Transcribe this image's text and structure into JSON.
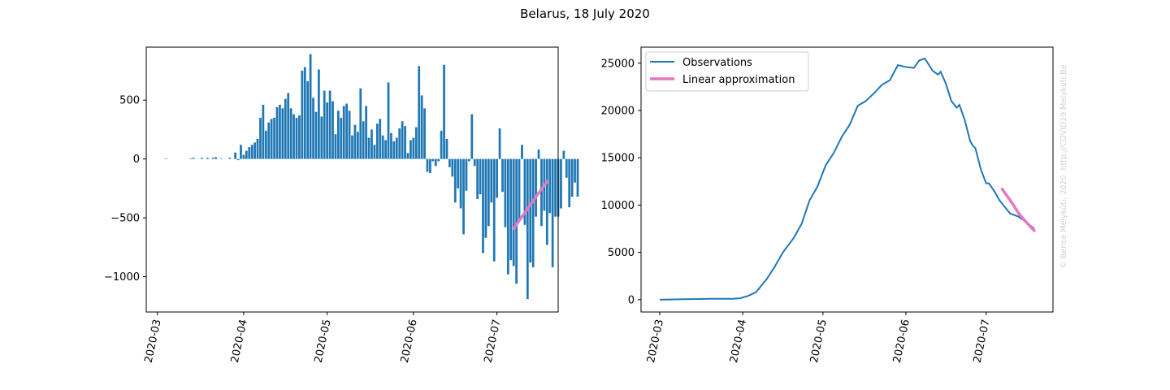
{
  "figure": {
    "title": "Belarus, 18 July 2020",
    "watermark": "© Bence Mélykúti, 2020. http://COVID19.Melykuti.Be"
  },
  "colors": {
    "observations": "#1f77b4",
    "linear_approximation": "#e377c2"
  },
  "chart_data": [
    {
      "id": "daily_change",
      "type": "bar",
      "title": "",
      "xlabel": "",
      "ylabel": "",
      "x_axis": "date",
      "xlim": [
        "2020-02-26",
        "2020-07-23"
      ],
      "ylim": [
        -1300,
        950
      ],
      "x_ticks": [
        "2020-03-01",
        "2020-04-01",
        "2020-05-01",
        "2020-06-01",
        "2020-07-01"
      ],
      "x_tick_labels": [
        "2020-03",
        "2020-04",
        "2020-05",
        "2020-06",
        "2020-07"
      ],
      "y_ticks": [
        -1000,
        -500,
        0,
        500
      ],
      "y_tick_labels": [
        "−1000",
        "−500",
        "0",
        "500"
      ],
      "grid": false,
      "legend": "none",
      "start_date": "2020-03-01",
      "bar_color": "#1f77b4",
      "series": [
        {
          "values": [
            0,
            0,
            0,
            5,
            0,
            0,
            0,
            0,
            0,
            0,
            0,
            0,
            5,
            10,
            0,
            0,
            10,
            0,
            10,
            0,
            10,
            15,
            0,
            5,
            0,
            0,
            10,
            0,
            55,
            -10,
            120,
            35,
            70,
            100,
            120,
            140,
            170,
            350,
            460,
            240,
            310,
            340,
            350,
            440,
            460,
            430,
            510,
            560,
            430,
            380,
            350,
            370,
            750,
            780,
            660,
            890,
            520,
            400,
            760,
            360,
            580,
            480,
            580,
            490,
            210,
            410,
            350,
            450,
            470,
            410,
            200,
            290,
            230,
            600,
            320,
            450,
            180,
            250,
            120,
            300,
            340,
            200,
            160,
            650,
            220,
            150,
            180,
            260,
            320,
            280,
            50,
            160,
            180,
            270,
            790,
            540,
            430,
            -110,
            -120,
            -20,
            -60,
            -20,
            240,
            800,
            170,
            -70,
            -150,
            -370,
            -250,
            -420,
            -640,
            -270,
            -20,
            380,
            -60,
            -340,
            -300,
            -800,
            -670,
            -570,
            -370,
            -870,
            -330,
            260,
            -280,
            -580,
            -980,
            -860,
            -910,
            -1060,
            -520,
            120,
            -560,
            -1190,
            -880,
            -920,
            -490,
            80,
            -570,
            -440,
            -730,
            -460,
            -920,
            -490,
            -490,
            -420,
            70,
            -160,
            -410,
            -320,
            -200,
            -320
          ],
          "color": "#1f77b4"
        }
      ],
      "overlay_line": {
        "x": [
          "2020-07-07",
          "2020-07-19"
        ],
        "y": [
          -590,
          -190
        ],
        "color": "#e377c2"
      }
    },
    {
      "id": "active_cases",
      "type": "line",
      "title": "",
      "xlabel": "",
      "ylabel": "",
      "x_axis": "date",
      "xlim": [
        "2020-02-23",
        "2020-07-26"
      ],
      "ylim": [
        -1300,
        26700
      ],
      "x_ticks": [
        "2020-03-01",
        "2020-04-01",
        "2020-05-01",
        "2020-06-01",
        "2020-07-01"
      ],
      "x_tick_labels": [
        "2020-03",
        "2020-04",
        "2020-05",
        "2020-06",
        "2020-07"
      ],
      "y_ticks": [
        0,
        5000,
        10000,
        15000,
        20000,
        25000
      ],
      "y_tick_labels": [
        "0",
        "5000",
        "10000",
        "15000",
        "20000",
        "25000"
      ],
      "grid": false,
      "legend": "top-left",
      "legend_entries": [
        "Observations",
        "Linear approximation"
      ],
      "series": [
        {
          "name": "Observations",
          "color": "#1f77b4",
          "x": [
            "2020-03-01",
            "2020-03-10",
            "2020-03-20",
            "2020-03-28",
            "2020-03-31",
            "2020-04-03",
            "2020-04-06",
            "2020-04-08",
            "2020-04-10",
            "2020-04-13",
            "2020-04-16",
            "2020-04-20",
            "2020-04-23",
            "2020-04-26",
            "2020-04-29",
            "2020-05-02",
            "2020-05-05",
            "2020-05-08",
            "2020-05-11",
            "2020-05-14",
            "2020-05-17",
            "2020-05-20",
            "2020-05-23",
            "2020-05-26",
            "2020-05-29",
            "2020-06-01",
            "2020-06-04",
            "2020-06-06",
            "2020-06-08",
            "2020-06-09",
            "2020-06-11",
            "2020-06-13",
            "2020-06-14",
            "2020-06-16",
            "2020-06-18",
            "2020-06-20",
            "2020-06-21",
            "2020-06-23",
            "2020-06-25",
            "2020-06-26",
            "2020-06-27",
            "2020-06-29",
            "2020-07-01",
            "2020-07-02",
            "2020-07-04",
            "2020-07-06",
            "2020-07-08",
            "2020-07-10",
            "2020-07-13",
            "2020-07-16",
            "2020-07-19"
          ],
          "y": [
            0,
            50,
            100,
            100,
            150,
            400,
            800,
            1500,
            2200,
            3500,
            5000,
            6500,
            8000,
            10500,
            12000,
            14200,
            15500,
            17200,
            18500,
            20500,
            21000,
            21800,
            22700,
            23200,
            24800,
            24600,
            24500,
            25300,
            25500,
            25100,
            24200,
            23800,
            24100,
            22800,
            21000,
            20300,
            20600,
            19000,
            16800,
            16300,
            16000,
            13800,
            12300,
            12300,
            11500,
            10500,
            9800,
            9100,
            8800,
            8200,
            7500
          ]
        }
      ],
      "overlay_line": {
        "name": "Linear approximation",
        "color": "#e377c2",
        "x": [
          "2020-07-07",
          "2020-07-09",
          "2020-07-11",
          "2020-07-13",
          "2020-07-15",
          "2020-07-17",
          "2020-07-19"
        ],
        "y": [
          11700,
          10900,
          10100,
          9200,
          8500,
          7900,
          7300
        ]
      }
    }
  ]
}
